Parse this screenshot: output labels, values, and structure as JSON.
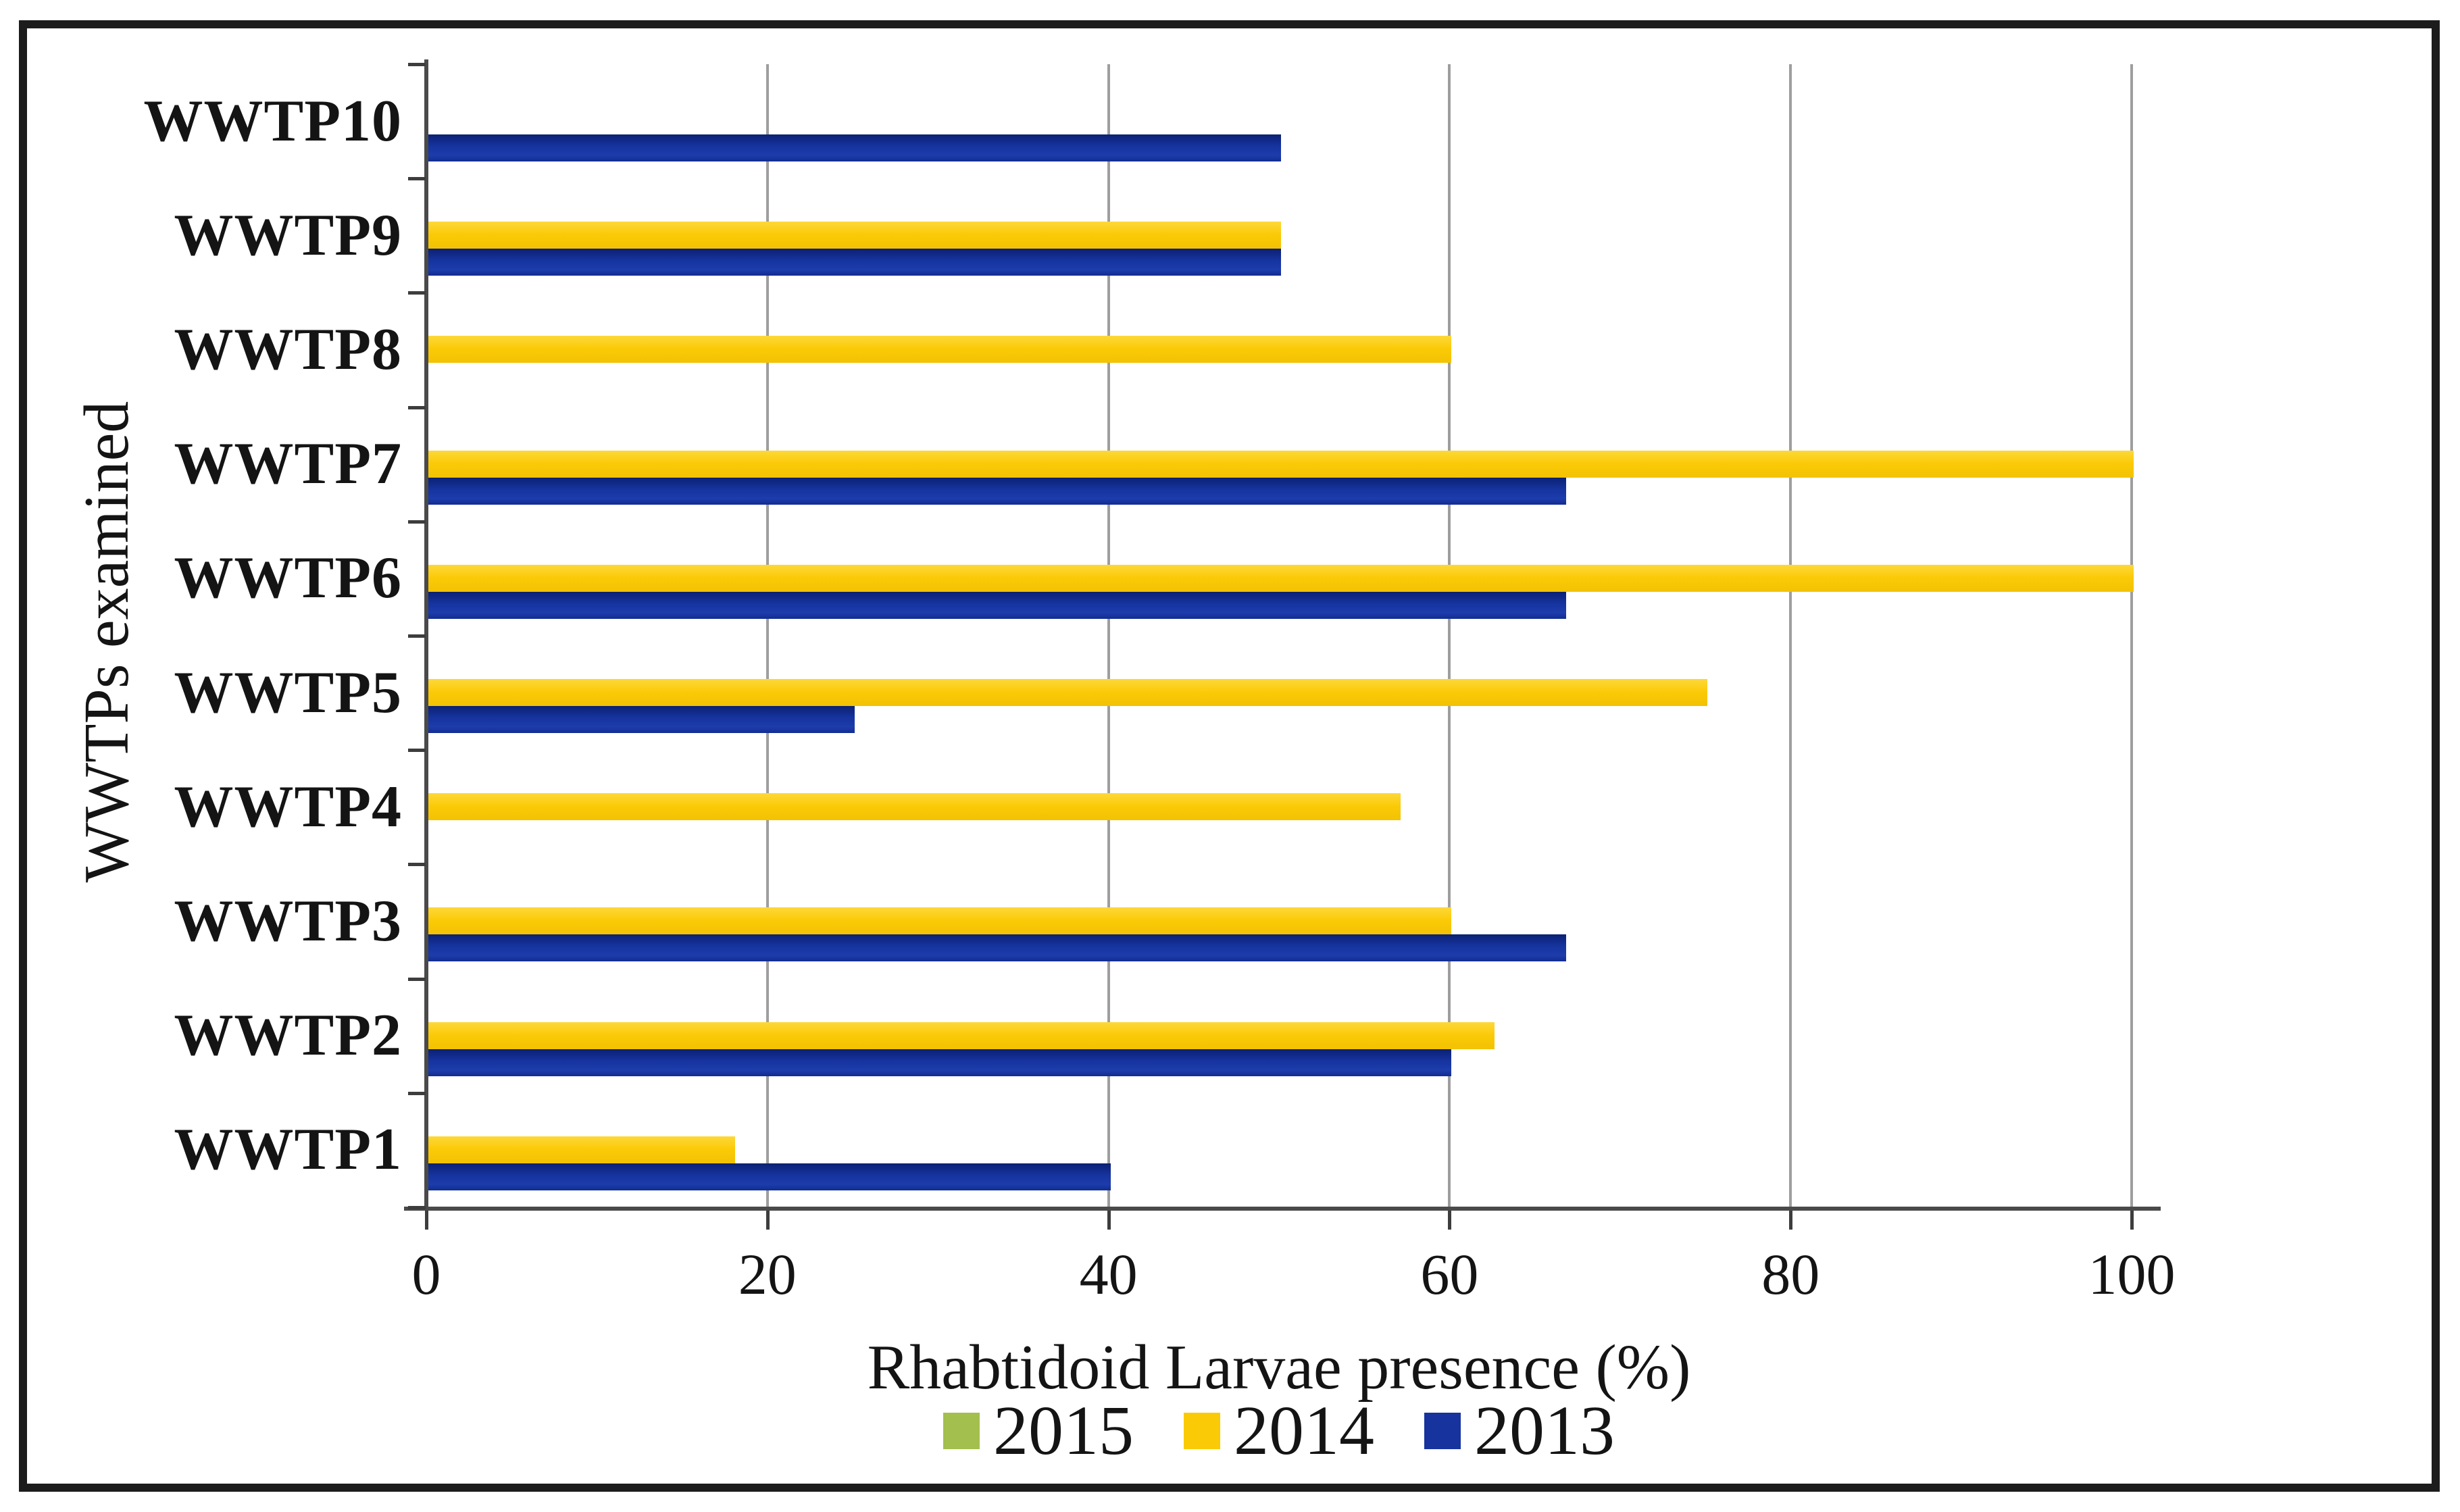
{
  "chart_data": {
    "type": "bar",
    "orientation": "horizontal",
    "title": "",
    "xlabel": "Rhabtidoid Larvae presence (%)",
    "ylabel": "WWTPs examined",
    "xlim": [
      0,
      100
    ],
    "xticks": [
      0,
      20,
      40,
      60,
      80,
      100
    ],
    "grid": "vertical",
    "legend_position": "bottom",
    "categories": [
      "WWTP10",
      "WWTP9",
      "WWTP8",
      "WWTP7",
      "WWTP6",
      "WWTP5",
      "WWTP4",
      "WWTP3",
      "WWTP2",
      "WWTP1"
    ],
    "series": [
      {
        "name": "2015",
        "color": "#a3bf4e",
        "values": [
          0,
          0,
          0,
          0,
          0,
          0,
          0,
          0,
          0,
          0
        ]
      },
      {
        "name": "2014",
        "color": "#fbca06",
        "values": [
          0,
          50,
          60,
          100,
          100,
          75,
          57,
          60,
          62.5,
          18
        ]
      },
      {
        "name": "2013",
        "color": "#16339e",
        "values": [
          50,
          50,
          0,
          66.7,
          66.7,
          25,
          0,
          66.7,
          60,
          40
        ]
      }
    ],
    "legend": [
      "2015",
      "2014",
      "2013"
    ]
  },
  "colors": {
    "gridline": "#9e9e9e",
    "axis": "#4a4a4a",
    "frame": "#1c1c1c",
    "text": "#141414"
  }
}
